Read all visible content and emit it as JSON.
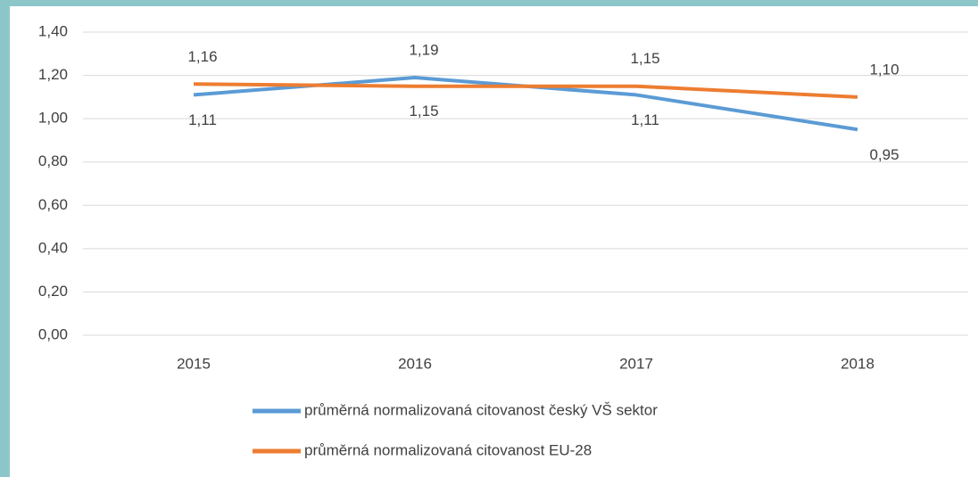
{
  "chart_data": {
    "type": "line",
    "categories": [
      "2015",
      "2016",
      "2017",
      "2018"
    ],
    "series": [
      {
        "name": "průměrná normalizovaná citovanost český VŠ sektor",
        "color": "#5b9bd5",
        "values": [
          1.11,
          1.19,
          1.11,
          0.95
        ],
        "value_labels": [
          "1,11",
          "1,19",
          "1,11",
          "0,95"
        ]
      },
      {
        "name": "průměrná normalizovaná citovanost EU-28",
        "color": "#ed7d31",
        "values": [
          1.16,
          1.15,
          1.15,
          1.1
        ],
        "value_labels": [
          "1,16",
          "1,15",
          "1,15",
          "1,10"
        ]
      }
    ],
    "ylim": [
      0,
      1.4
    ],
    "yticks": [
      {
        "value": 0,
        "label": "0,00"
      },
      {
        "value": 0.2,
        "label": "0,20"
      },
      {
        "value": 0.4,
        "label": "0,40"
      },
      {
        "value": 0.6,
        "label": "0,60"
      },
      {
        "value": 0.8,
        "label": "0,80"
      },
      {
        "value": 1.0,
        "label": "1,00"
      },
      {
        "value": 1.2,
        "label": "1,20"
      },
      {
        "value": 1.4,
        "label": "1,40"
      }
    ],
    "grid": true,
    "legend": "bottom"
  }
}
